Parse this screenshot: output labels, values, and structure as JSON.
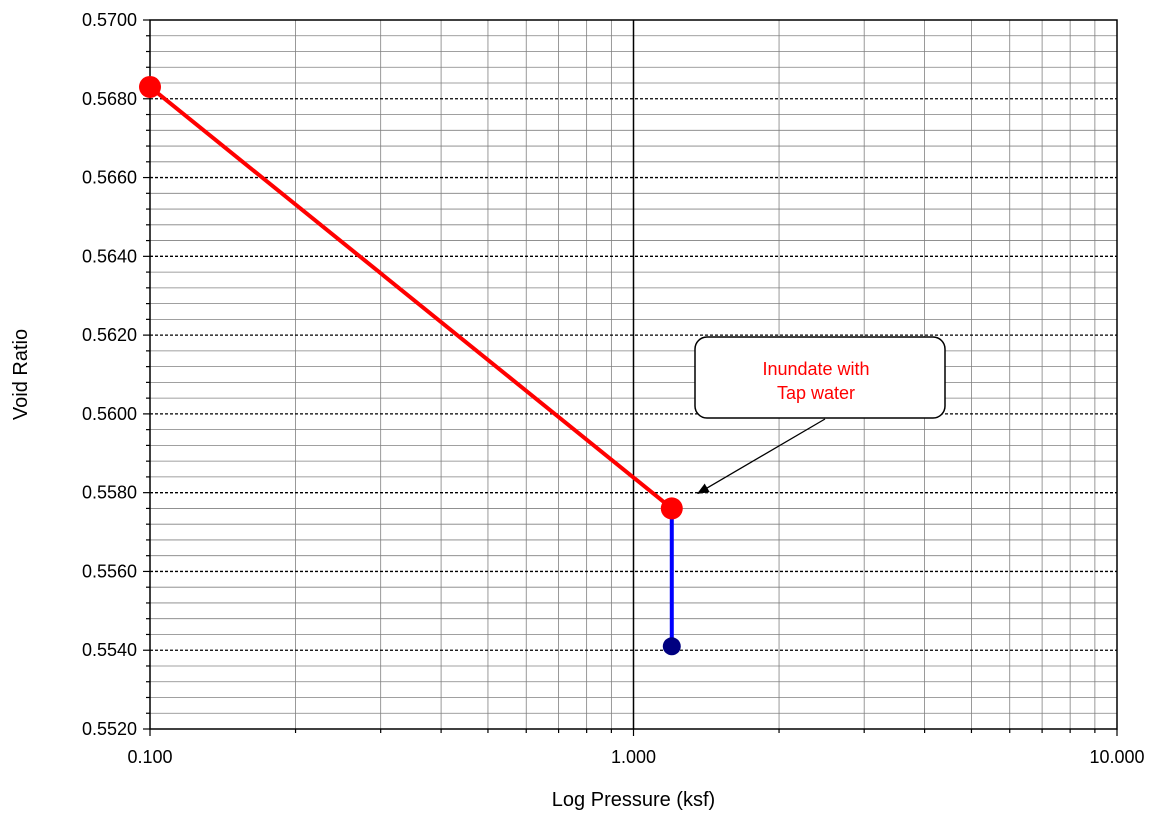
{
  "chart_data": {
    "type": "scatter",
    "title": "",
    "xlabel": "Log Pressure (ksf)",
    "ylabel": "Void Ratio",
    "x_scale": "log",
    "xlim": [
      0.1,
      10
    ],
    "ylim": [
      0.552,
      0.57
    ],
    "x_ticks": [
      0.1,
      1,
      10
    ],
    "x_tick_labels": [
      "0.100",
      "1.000",
      "10.000"
    ],
    "y_ticks": [
      0.552,
      0.554,
      0.556,
      0.558,
      0.56,
      0.562,
      0.564,
      0.566,
      0.568,
      0.57
    ],
    "y_tick_labels": [
      "0.5520",
      "0.5540",
      "0.5560",
      "0.5580",
      "0.5600",
      "0.5620",
      "0.5640",
      "0.5660",
      "0.5680",
      "0.5700"
    ],
    "grid": true,
    "series": [
      {
        "color": "#ff0000",
        "x": [
          0.1,
          1.2
        ],
        "y": [
          0.5683,
          0.5576
        ]
      },
      {
        "color": "#0000ff",
        "marker_color": "#000080",
        "x": [
          1.2,
          1.2
        ],
        "y": [
          0.5576,
          0.5541
        ]
      }
    ],
    "annotations": [
      {
        "lines": [
          "Inundate with",
          "Tap water"
        ],
        "color": "#ff0000",
        "points_to": {
          "x": 1.2,
          "y": 0.5576
        }
      }
    ]
  }
}
